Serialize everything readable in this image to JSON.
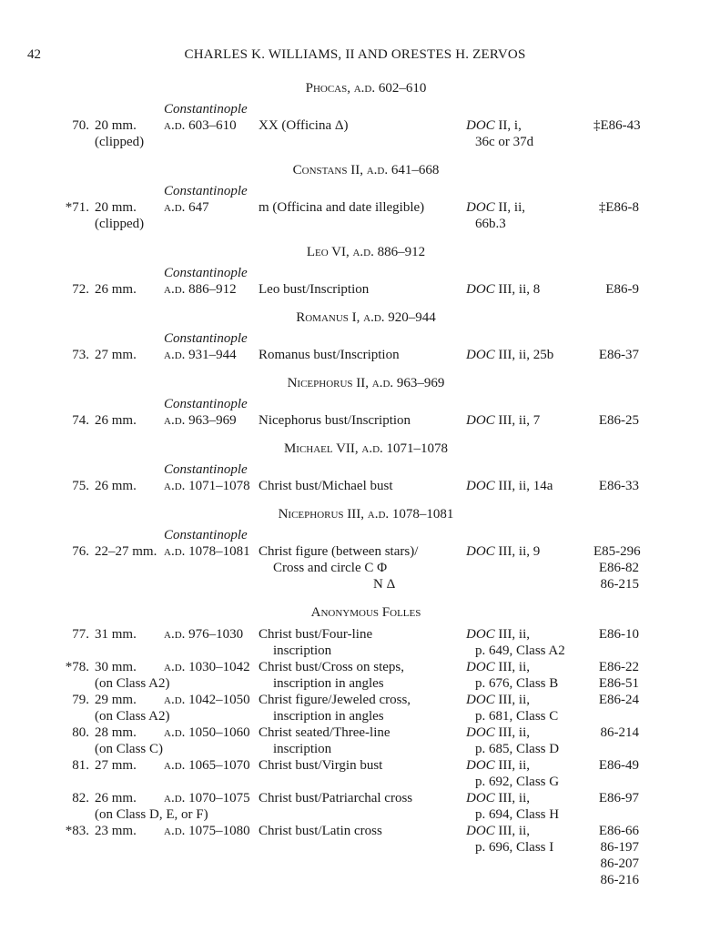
{
  "header": {
    "page_number": "42",
    "running_title": "CHARLES K. WILLIAMS, II AND ORESTES H. ZERVOS"
  },
  "sections": [
    {
      "heading": "Phocas, a.d. 602–610",
      "entries": [
        {
          "num": "70.",
          "size": [
            "20 mm.",
            "(clipped)"
          ],
          "mint": "Constantinople",
          "date": "603–610",
          "desc": [
            "XX (Officina Δ)"
          ],
          "ref": [
            "II, i,",
            "36c or 37d"
          ],
          "inv": [
            "‡E86-43"
          ]
        }
      ]
    },
    {
      "heading": "Constans II, a.d. 641–668",
      "entries": [
        {
          "num": "*71.",
          "size": [
            "20 mm.",
            "(clipped)"
          ],
          "mint": "Constantinople",
          "date": "647",
          "desc": [
            "m (Officina and date illegible)"
          ],
          "ref": [
            "II, ii,",
            "66b.3"
          ],
          "inv": [
            "‡E86-8"
          ]
        }
      ]
    },
    {
      "heading": "Leo VI, a.d. 886–912",
      "entries": [
        {
          "num": "72.",
          "size": [
            "26 mm."
          ],
          "mint": "Constantinople",
          "date": "886–912",
          "desc": [
            "Leo bust/Inscription"
          ],
          "ref": [
            "III, ii, 8"
          ],
          "inv": [
            "E86-9"
          ]
        }
      ]
    },
    {
      "heading": "Romanus I, a.d. 920–944",
      "entries": [
        {
          "num": "73.",
          "size": [
            "27 mm."
          ],
          "mint": "Constantinople",
          "date": "931–944",
          "desc": [
            "Romanus bust/Inscription"
          ],
          "ref": [
            "III, ii, 25b"
          ],
          "inv": [
            "E86-37"
          ]
        }
      ]
    },
    {
      "heading": "Nicephorus II, a.d. 963–969",
      "entries": [
        {
          "num": "74.",
          "size": [
            "26 mm."
          ],
          "mint": "Constantinople",
          "date": "963–969",
          "desc": [
            "Nicephorus bust/Inscription"
          ],
          "ref": [
            "III, ii, 7"
          ],
          "inv": [
            "E86-25"
          ]
        }
      ]
    },
    {
      "heading": "Michael VII, a.d. 1071–1078",
      "entries": [
        {
          "num": "75.",
          "size": [
            "26 mm."
          ],
          "mint": "Constantinople",
          "date": "1071–1078",
          "desc": [
            "Christ bust/Michael bust"
          ],
          "ref": [
            "III, ii, 14a"
          ],
          "inv": [
            "E86-33"
          ]
        }
      ]
    },
    {
      "heading": "Nicephorus III, a.d. 1078–1081",
      "entries": [
        {
          "num": "76.",
          "size": [
            "22–27 mm."
          ],
          "mint": "Constantinople",
          "date": "1078–1081",
          "desc": [
            "Christ figure (between stars)/",
            "Cross and circle  C  Φ",
            "N  Δ"
          ],
          "ref": [
            "III, ii, 9"
          ],
          "inv": [
            "E85-296",
            "E86-82",
            "86-215"
          ]
        }
      ]
    },
    {
      "heading": "Anonymous Folles",
      "anon": true,
      "entries": [
        {
          "num": "77.",
          "size": [
            "31 mm."
          ],
          "date": "976–1030",
          "desc": [
            "Christ bust/Four-line",
            "inscription"
          ],
          "ref": [
            "III, ii,",
            "p. 649, Class A2"
          ],
          "inv": [
            "E86-10"
          ]
        },
        {
          "num": "*78.",
          "size": [
            "30 mm.",
            "(on Class A2)"
          ],
          "date": "1030–1042",
          "desc": [
            "Christ bust/Cross on steps,",
            "inscription in angles"
          ],
          "ref": [
            "III, ii,",
            "p. 676, Class B"
          ],
          "inv": [
            "E86-22",
            "E86-51"
          ]
        },
        {
          "num": "79.",
          "size": [
            "29 mm.",
            "(on Class A2)"
          ],
          "date": "1042–1050",
          "desc": [
            "Christ figure/Jeweled cross,",
            "inscription in angles"
          ],
          "ref": [
            "III, ii,",
            "p. 681, Class C"
          ],
          "inv": [
            "E86-24"
          ]
        },
        {
          "num": "80.",
          "size": [
            "28 mm.",
            "(on Class C)"
          ],
          "date": "1050–1060",
          "desc": [
            "Christ seated/Three-line",
            "inscription"
          ],
          "ref": [
            "III, ii,",
            "p. 685, Class D"
          ],
          "inv": [
            "86-214"
          ]
        },
        {
          "num": "81.",
          "size": [
            "27 mm."
          ],
          "date": "1065–1070",
          "desc": [
            "Christ bust/Virgin bust"
          ],
          "ref": [
            "III, ii,",
            "p. 692, Class G"
          ],
          "inv": [
            "E86-49"
          ]
        },
        {
          "num": "82.",
          "size": [
            "26 mm.",
            "(on Class D, E, or F)"
          ],
          "date": "1070–1075",
          "desc": [
            "Christ bust/Patriarchal cross"
          ],
          "ref": [
            "III, ii,",
            "p. 694, Class H"
          ],
          "inv": [
            "E86-97"
          ]
        },
        {
          "num": "*83.",
          "size": [
            "23 mm."
          ],
          "date": "1075–1080",
          "desc": [
            "Christ bust/Latin cross"
          ],
          "ref": [
            "III, ii,",
            "p. 696, Class I"
          ],
          "inv": [
            "E86-66",
            "86-197",
            "86-207",
            "86-216"
          ]
        }
      ]
    }
  ],
  "labels": {
    "ad": "a.d.",
    "doc": "DOC"
  }
}
